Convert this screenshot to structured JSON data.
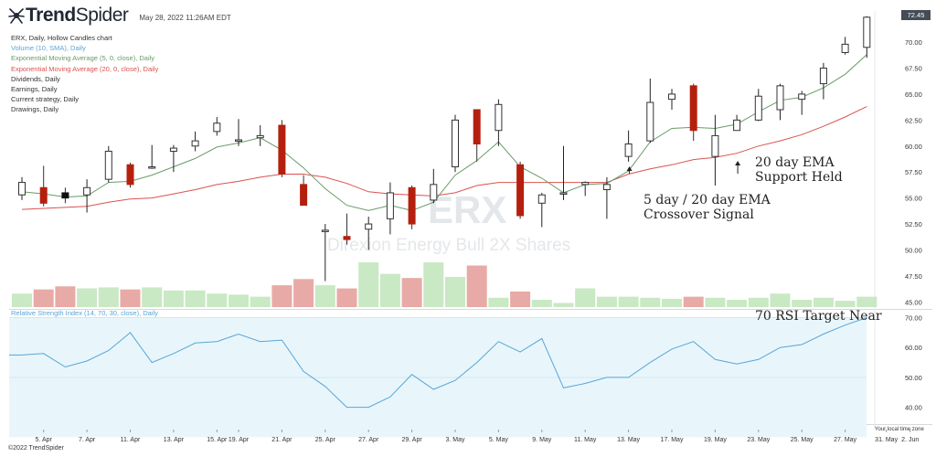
{
  "header": {
    "brand_bold": "Trend",
    "brand_light": "Spider",
    "timestamp": "May 28, 2022 11:26AM EDT",
    "last_price": "72.45"
  },
  "legend": [
    {
      "label": "ERX, Daily, Hollow Candles chart",
      "color": "#333333"
    },
    {
      "label": "Volume (10, SMA), Daily",
      "color": "#5aa5d6"
    },
    {
      "label": "Exponential Moving Average (5, 0, close), Daily",
      "color": "#6a9a6a"
    },
    {
      "label": "Exponential Moving Average (20, 0, close), Daily",
      "color": "#d9534f"
    },
    {
      "label": "Dividends, Daily",
      "color": "#333333"
    },
    {
      "label": "Earnings, Daily",
      "color": "#333333"
    },
    {
      "label": "Current strategy, Daily",
      "color": "#333333"
    },
    {
      "label": "Drawings, Daily",
      "color": "#333333"
    }
  ],
  "watermark": {
    "symbol": "ERX",
    "name": "Direxion Energy Bull 2X Shares"
  },
  "annotations": {
    "support_line1": "20 day EMA",
    "support_line2": "Support Held",
    "cross_line1": "5 day / 20 day EMA",
    "cross_line2": "Crossover Signal",
    "rsi_note": "70 RSI Target Near"
  },
  "rsi_label": "Relative Strength Index (14, 70, 30, close), Daily",
  "timezone_note": "Your local time zone",
  "copyright": "©2022 TrendSpider",
  "colors": {
    "up": "#ffffff",
    "down": "#b5200e",
    "ema5": "#6a9a6a",
    "ema20": "#d9534f",
    "vol_up": "#c9e8c4",
    "vol_down": "#e8aaa6",
    "rsi_line": "#5aa5d6",
    "rsi_band": "#e8f6fb"
  },
  "chart_data": {
    "type": "candlestick",
    "ticker": "ERX",
    "price_ticks": [
      45.0,
      47.5,
      50.0,
      52.5,
      55.0,
      57.5,
      60.0,
      62.5,
      65.0,
      67.5,
      70.0
    ],
    "price_range": [
      44.5,
      73.0
    ],
    "rsi_ticks": [
      40.0,
      50.0,
      60.0,
      70.0
    ],
    "rsi_range": [
      35,
      72
    ],
    "x_labels": [
      {
        "label": "5. Apr",
        "i": 1
      },
      {
        "label": "7. Apr",
        "i": 3
      },
      {
        "label": "11. Apr",
        "i": 5
      },
      {
        "label": "13. Apr",
        "i": 7
      },
      {
        "label": "15. Apr",
        "i": 9
      },
      {
        "label": "19. Apr",
        "i": 10
      },
      {
        "label": "21. Apr",
        "i": 12
      },
      {
        "label": "25. Apr",
        "i": 14
      },
      {
        "label": "27. Apr",
        "i": 16
      },
      {
        "label": "29. Apr",
        "i": 18
      },
      {
        "label": "3. May",
        "i": 20
      },
      {
        "label": "5. May",
        "i": 22
      },
      {
        "label": "9. May",
        "i": 24
      },
      {
        "label": "11. May",
        "i": 26
      },
      {
        "label": "13. May",
        "i": 28
      },
      {
        "label": "17. May",
        "i": 30
      },
      {
        "label": "19. May",
        "i": 32
      },
      {
        "label": "23. May",
        "i": 34
      },
      {
        "label": "25. May",
        "i": 36
      },
      {
        "label": "27. May",
        "i": 38
      },
      {
        "label": "31. May",
        "i": 39.9
      },
      {
        "label": "2. Jun",
        "i": 41
      }
    ],
    "candles": [
      {
        "o": 55.3,
        "h": 57.0,
        "l": 54.8,
        "c": 56.5,
        "vol": 45.8
      },
      {
        "o": 56.0,
        "h": 58.1,
        "l": 54.2,
        "c": 54.5,
        "vol": 46.2
      },
      {
        "o": 55.5,
        "h": 56.0,
        "l": 54.5,
        "c": 55.0,
        "vol": 46.5
      },
      {
        "o": 55.3,
        "h": 56.8,
        "l": 53.6,
        "c": 56.0,
        "vol": 46.3
      },
      {
        "o": 56.8,
        "h": 60.0,
        "l": 56.5,
        "c": 59.5,
        "vol": 46.4
      },
      {
        "o": 58.2,
        "h": 58.4,
        "l": 56.0,
        "c": 56.3,
        "vol": 46.2
      },
      {
        "o": 57.9,
        "h": 60.1,
        "l": 57.8,
        "c": 58.0,
        "vol": 46.4
      },
      {
        "o": 59.5,
        "h": 60.1,
        "l": 57.5,
        "c": 59.8,
        "vol": 46.1
      },
      {
        "o": 60.0,
        "h": 61.4,
        "l": 59.5,
        "c": 60.5,
        "vol": 46.1
      },
      {
        "o": 61.4,
        "h": 62.8,
        "l": 61.0,
        "c": 62.2,
        "vol": 45.8
      },
      {
        "o": 60.5,
        "h": 62.6,
        "l": 60.0,
        "c": 60.6,
        "vol": 45.7
      },
      {
        "o": 60.8,
        "h": 62.0,
        "l": 60.0,
        "c": 61.0,
        "vol": 45.5
      },
      {
        "o": 62.0,
        "h": 62.5,
        "l": 57.0,
        "c": 57.3,
        "vol": 46.6
      },
      {
        "o": 56.3,
        "h": 57.2,
        "l": 54.3,
        "c": 54.3,
        "vol": 47.2
      },
      {
        "o": 51.8,
        "h": 52.5,
        "l": 47.0,
        "c": 51.9,
        "vol": 46.6
      },
      {
        "o": 51.3,
        "h": 53.5,
        "l": 50.5,
        "c": 51.0,
        "vol": 46.3
      },
      {
        "o": 52.0,
        "h": 53.2,
        "l": 50.0,
        "c": 52.5,
        "vol": 48.8
      },
      {
        "o": 53.0,
        "h": 56.5,
        "l": 51.5,
        "c": 55.5,
        "vol": 47.7
      },
      {
        "o": 56.0,
        "h": 56.2,
        "l": 52.0,
        "c": 52.5,
        "vol": 47.3
      },
      {
        "o": 54.8,
        "h": 57.8,
        "l": 54.5,
        "c": 56.3,
        "vol": 48.8
      },
      {
        "o": 58.0,
        "h": 63.0,
        "l": 57.5,
        "c": 62.5,
        "vol": 47.4
      },
      {
        "o": 63.5,
        "h": 63.5,
        "l": 58.5,
        "c": 60.2,
        "vol": 48.5
      },
      {
        "o": 61.5,
        "h": 64.5,
        "l": 60.0,
        "c": 64.0,
        "vol": 45.4
      },
      {
        "o": 58.2,
        "h": 58.5,
        "l": 53.0,
        "c": 53.3,
        "vol": 46.0
      },
      {
        "o": 54.5,
        "h": 55.5,
        "l": 52.2,
        "c": 55.3,
        "vol": 45.2
      },
      {
        "o": 55.5,
        "h": 60.0,
        "l": 54.8,
        "c": 55.5,
        "vol": 44.9
      },
      {
        "o": 56.3,
        "h": 56.6,
        "l": 55.2,
        "c": 56.5,
        "vol": 46.3
      },
      {
        "o": 55.8,
        "h": 57.0,
        "l": 53.0,
        "c": 56.3,
        "vol": 45.5
      },
      {
        "o": 59.0,
        "h": 61.5,
        "l": 58.5,
        "c": 60.2,
        "vol": 45.5
      },
      {
        "o": 60.5,
        "h": 66.5,
        "l": 60.3,
        "c": 64.2,
        "vol": 45.4
      },
      {
        "o": 64.5,
        "h": 65.5,
        "l": 63.5,
        "c": 65.0,
        "vol": 45.3
      },
      {
        "o": 65.8,
        "h": 66.0,
        "l": 60.5,
        "c": 61.5,
        "vol": 45.5
      },
      {
        "o": 59.0,
        "h": 63.0,
        "l": 56.2,
        "c": 61.0,
        "vol": 45.4
      },
      {
        "o": 61.5,
        "h": 63.0,
        "l": 61.5,
        "c": 62.5,
        "vol": 45.2
      },
      {
        "o": 62.5,
        "h": 65.5,
        "l": 62.4,
        "c": 64.8,
        "vol": 45.4
      },
      {
        "o": 63.5,
        "h": 66.0,
        "l": 62.5,
        "c": 65.8,
        "vol": 45.8
      },
      {
        "o": 64.5,
        "h": 65.3,
        "l": 63.0,
        "c": 65.0,
        "vol": 45.2
      },
      {
        "o": 66.0,
        "h": 68.0,
        "l": 64.5,
        "c": 67.5,
        "vol": 45.4
      },
      {
        "o": 69.0,
        "h": 70.5,
        "l": 68.8,
        "c": 69.8,
        "vol": 45.1
      },
      {
        "o": 69.5,
        "h": 72.5,
        "l": 68.5,
        "c": 72.4,
        "vol": 45.5
      }
    ],
    "ema5": [
      55.6,
      55.4,
      55.1,
      55.2,
      56.5,
      56.6,
      57.2,
      58.0,
      58.8,
      59.9,
      60.3,
      60.8,
      59.6,
      57.9,
      55.9,
      54.3,
      53.8,
      54.3,
      53.8,
      54.6,
      57.2,
      58.6,
      60.4,
      58.0,
      56.9,
      55.5,
      56.3,
      56.4,
      57.6,
      60.4,
      61.7,
      61.8,
      61.7,
      62.1,
      63.3,
      64.4,
      64.7,
      65.6,
      66.9,
      68.8
    ],
    "ema20": [
      53.9,
      54.0,
      54.1,
      54.2,
      54.6,
      54.9,
      55.0,
      55.4,
      55.8,
      56.3,
      56.6,
      57.0,
      57.3,
      57.3,
      57.0,
      56.4,
      55.6,
      55.4,
      55.3,
      55.2,
      55.5,
      56.2,
      56.5,
      56.5,
      56.5,
      56.5,
      56.5,
      56.5,
      57.3,
      57.8,
      58.2,
      58.7,
      58.9,
      59.3,
      60.0,
      60.5,
      61.1,
      61.9,
      62.8,
      63.8
    ],
    "rsi": [
      57.5,
      58.0,
      53.5,
      55.5,
      59.0,
      65.0,
      55.0,
      58.0,
      61.5,
      62.0,
      64.5,
      62.0,
      62.5,
      52.0,
      47.0,
      40.0,
      40.0,
      43.5,
      51.0,
      46.0,
      49.0,
      55.0,
      62.0,
      58.5,
      63.0,
      46.5,
      48.0,
      50.0,
      50.0,
      55.0,
      59.5,
      62.0,
      56.0,
      54.5,
      56.0,
      60.0,
      61.0,
      64.5,
      67.5,
      70.0
    ]
  }
}
